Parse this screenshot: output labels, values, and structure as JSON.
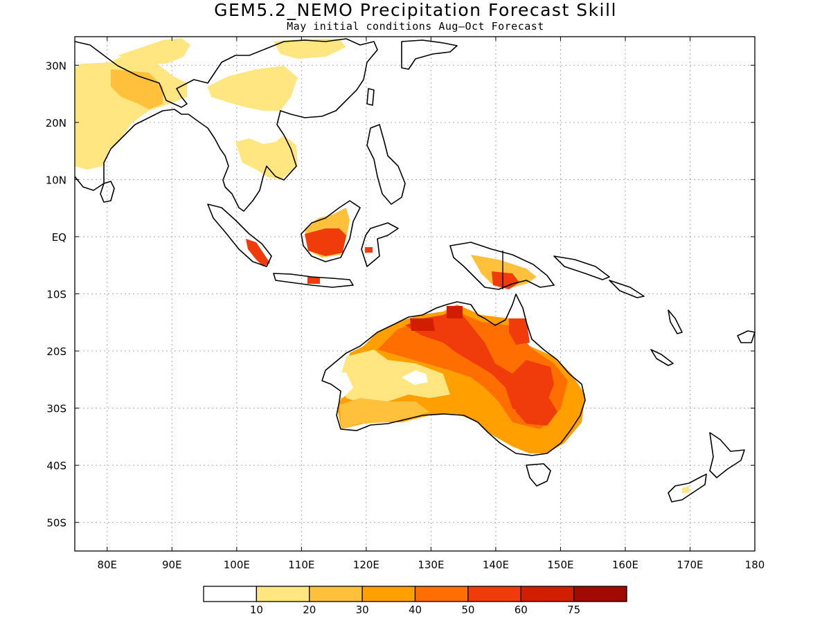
{
  "title": "GEM5.2_NEMO Precipitation Forecast Skill",
  "subtitle": "May initial conditions  Aug–Oct Forecast",
  "map": {
    "region": "Indo-Pacific / Australia",
    "lon_range": [
      75,
      180
    ],
    "lat_range": [
      -55,
      35
    ],
    "grid": true,
    "lat_ticks": [
      "30N",
      "20N",
      "10N",
      "EQ",
      "10S",
      "20S",
      "30S",
      "40S",
      "50S"
    ],
    "lat_tick_values": [
      30,
      20,
      10,
      0,
      -10,
      -20,
      -30,
      -40,
      -50
    ],
    "lon_ticks": [
      "80E",
      "90E",
      "100E",
      "110E",
      "120E",
      "130E",
      "140E",
      "150E",
      "160E",
      "170E",
      "180"
    ],
    "lon_tick_values": [
      80,
      90,
      100,
      110,
      120,
      130,
      140,
      150,
      160,
      170,
      180
    ]
  },
  "colorbar": {
    "labels": [
      "10",
      "20",
      "30",
      "40",
      "50",
      "60",
      "75"
    ],
    "colors": [
      "#ffffff",
      "#ffe680",
      "#ffc03c",
      "#ffa000",
      "#ff6e00",
      "#f03c0a",
      "#d21e00",
      "#a00a00"
    ]
  }
}
